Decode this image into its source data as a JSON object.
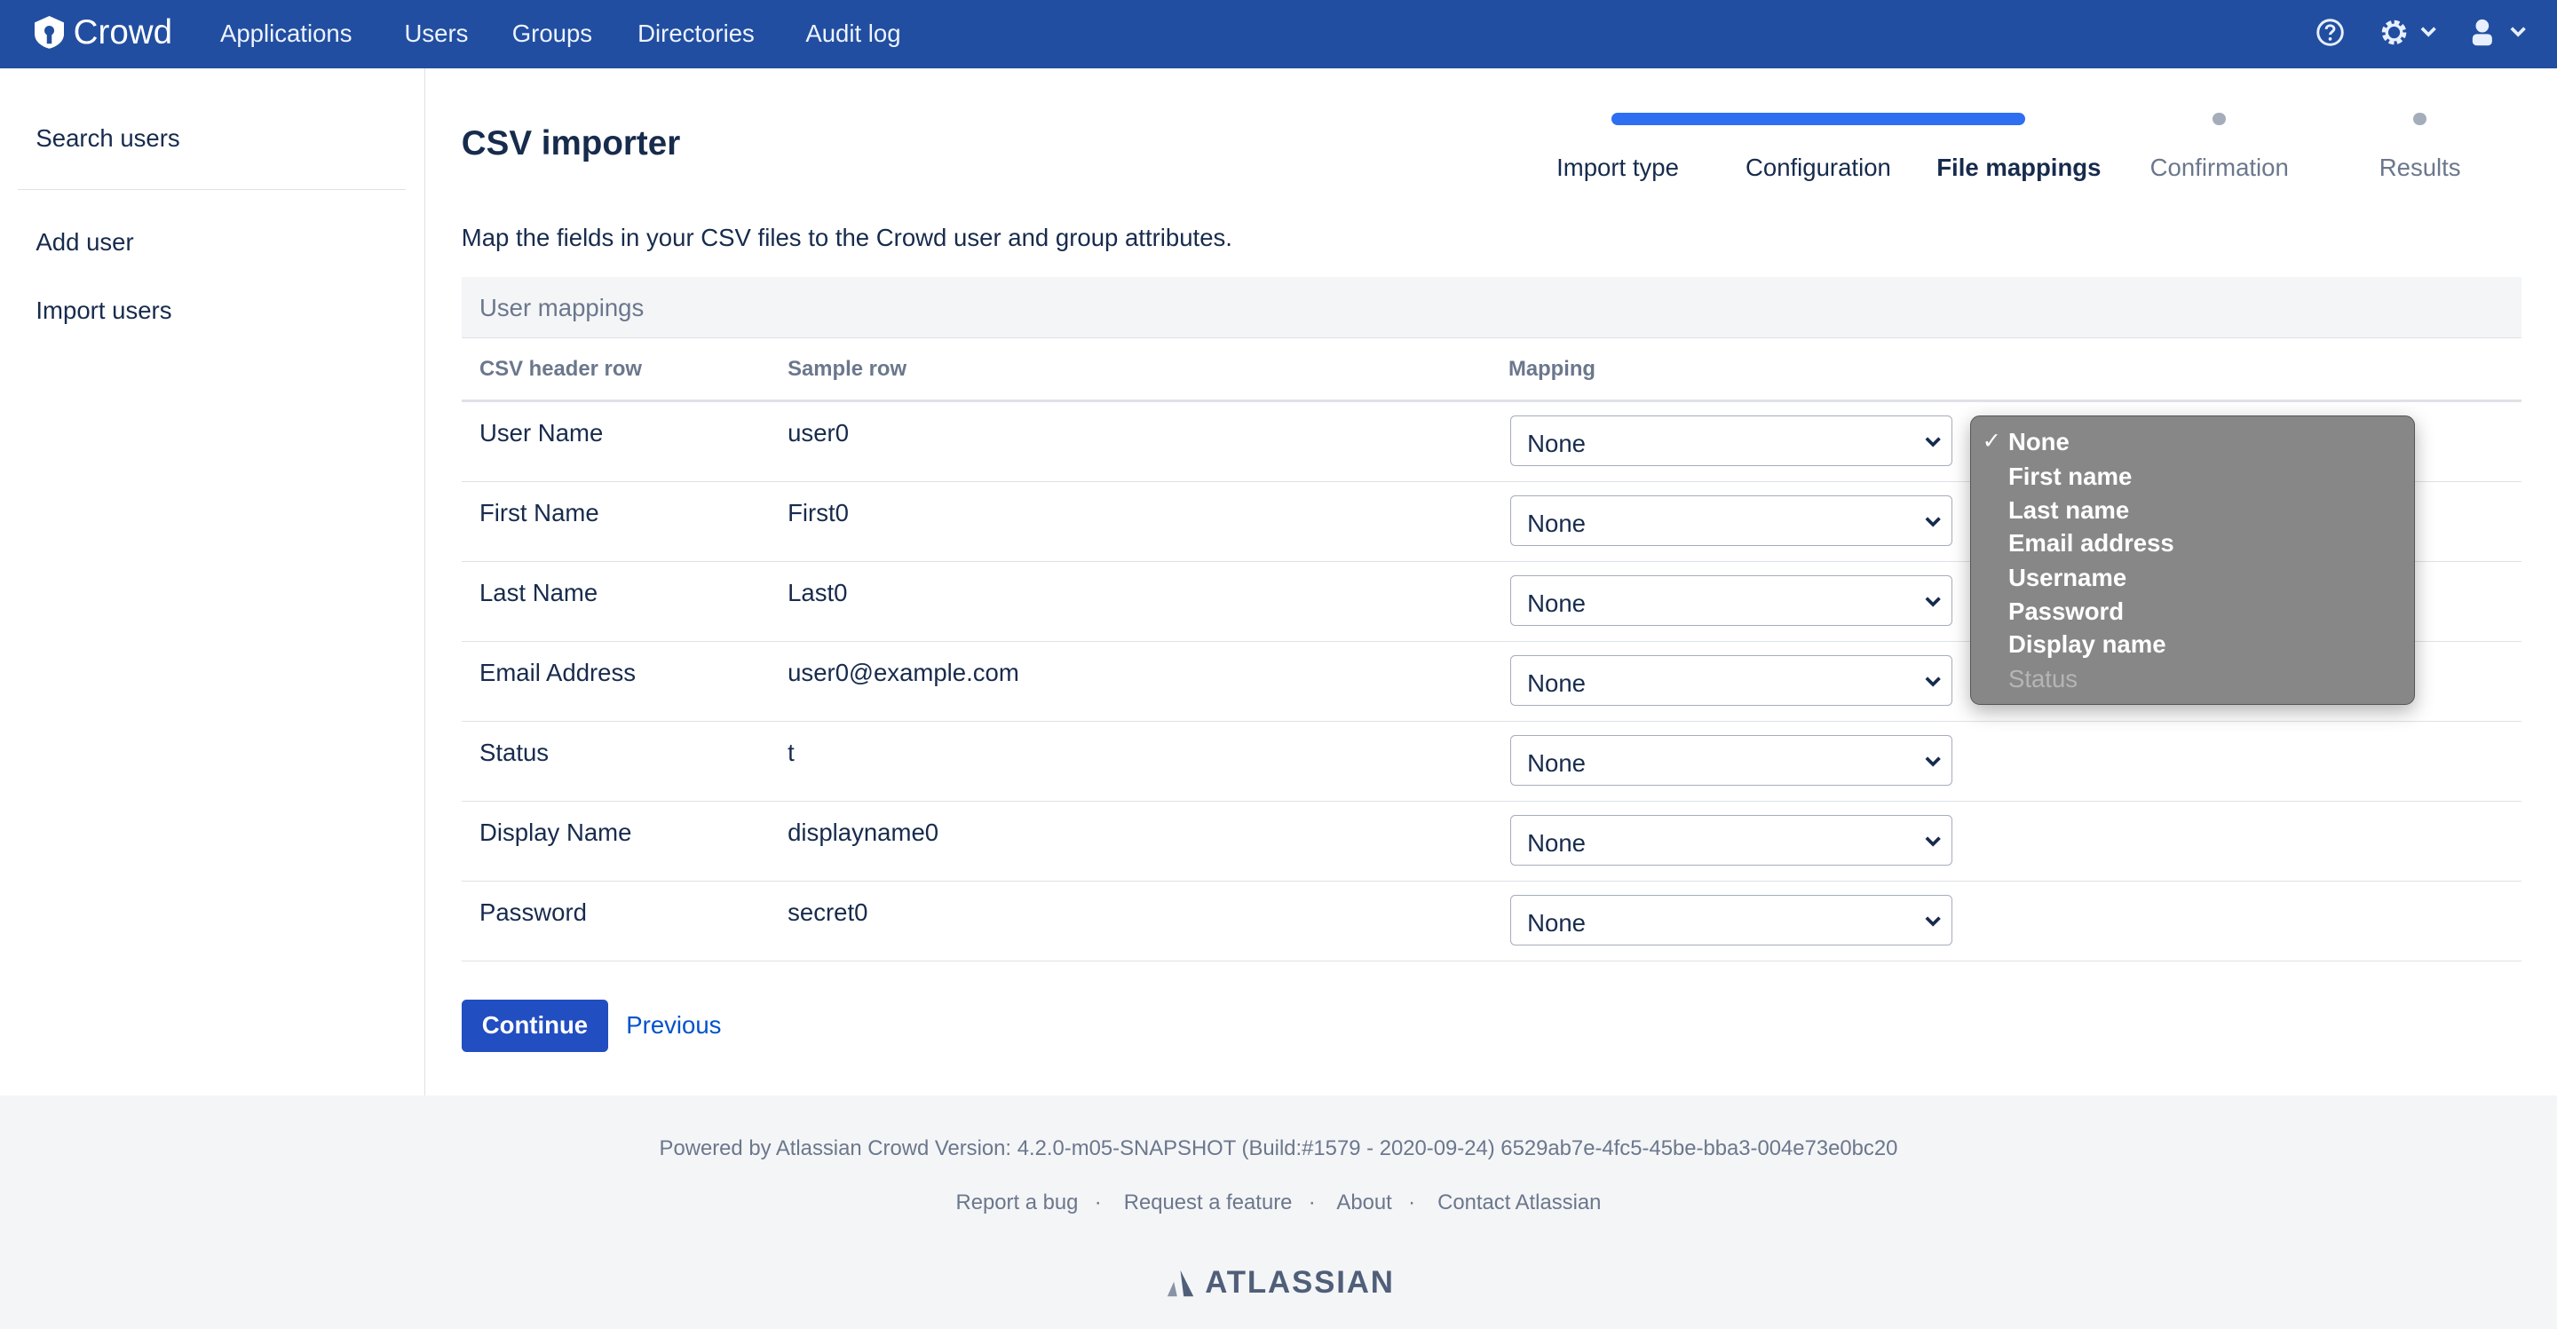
{
  "header": {
    "app_name": "Crowd",
    "nav": [
      "Applications",
      "Users",
      "Groups",
      "Directories",
      "Audit log"
    ],
    "icons": [
      "help-icon",
      "gear-icon",
      "user-icon"
    ],
    "color": "#214ea0"
  },
  "sidebar": {
    "items": [
      "Search users",
      "Add user",
      "Import users"
    ]
  },
  "page": {
    "title": "CSV importer",
    "description": "Map the fields in your CSV files to the Crowd user and group attributes."
  },
  "stepper": {
    "steps": [
      "Import type",
      "Configuration",
      "File mappings",
      "Confirmation",
      "Results"
    ],
    "current": "File mappings",
    "completed_steps": 3
  },
  "table": {
    "section": "User mappings",
    "columns": [
      "CSV header row",
      "Sample row",
      "Mapping"
    ],
    "rows": [
      {
        "header": "User Name",
        "sample": "user0",
        "mapping": "None"
      },
      {
        "header": "First Name",
        "sample": "First0",
        "mapping": "None"
      },
      {
        "header": "Last Name",
        "sample": "Last0",
        "mapping": "None"
      },
      {
        "header": "Email Address",
        "sample": "user0@example.com",
        "mapping": "None"
      },
      {
        "header": "Status",
        "sample": "t",
        "mapping": "None"
      },
      {
        "header": "Display Name",
        "sample": "displayname0",
        "mapping": "None"
      },
      {
        "header": "Password",
        "sample": "secret0",
        "mapping": "None"
      }
    ]
  },
  "dropdown": {
    "selected": "None",
    "options": [
      "None",
      "First name",
      "Last name",
      "Email address",
      "Username",
      "Password",
      "Display name",
      "Status"
    ],
    "disabled": [
      "Status"
    ]
  },
  "actions": {
    "continue": "Continue",
    "previous": "Previous"
  },
  "footer": {
    "version": "Powered by Atlassian Crowd Version: 4.2.0-m05-SNAPSHOT (Build:#1579 - 2020-09-24) 6529ab7e-4fc5-45be-bba3-004e73e0bc20",
    "links": [
      "Report a bug",
      "Request a feature",
      "About",
      "Contact Atlassian"
    ],
    "logo": "ATLASSIAN"
  }
}
